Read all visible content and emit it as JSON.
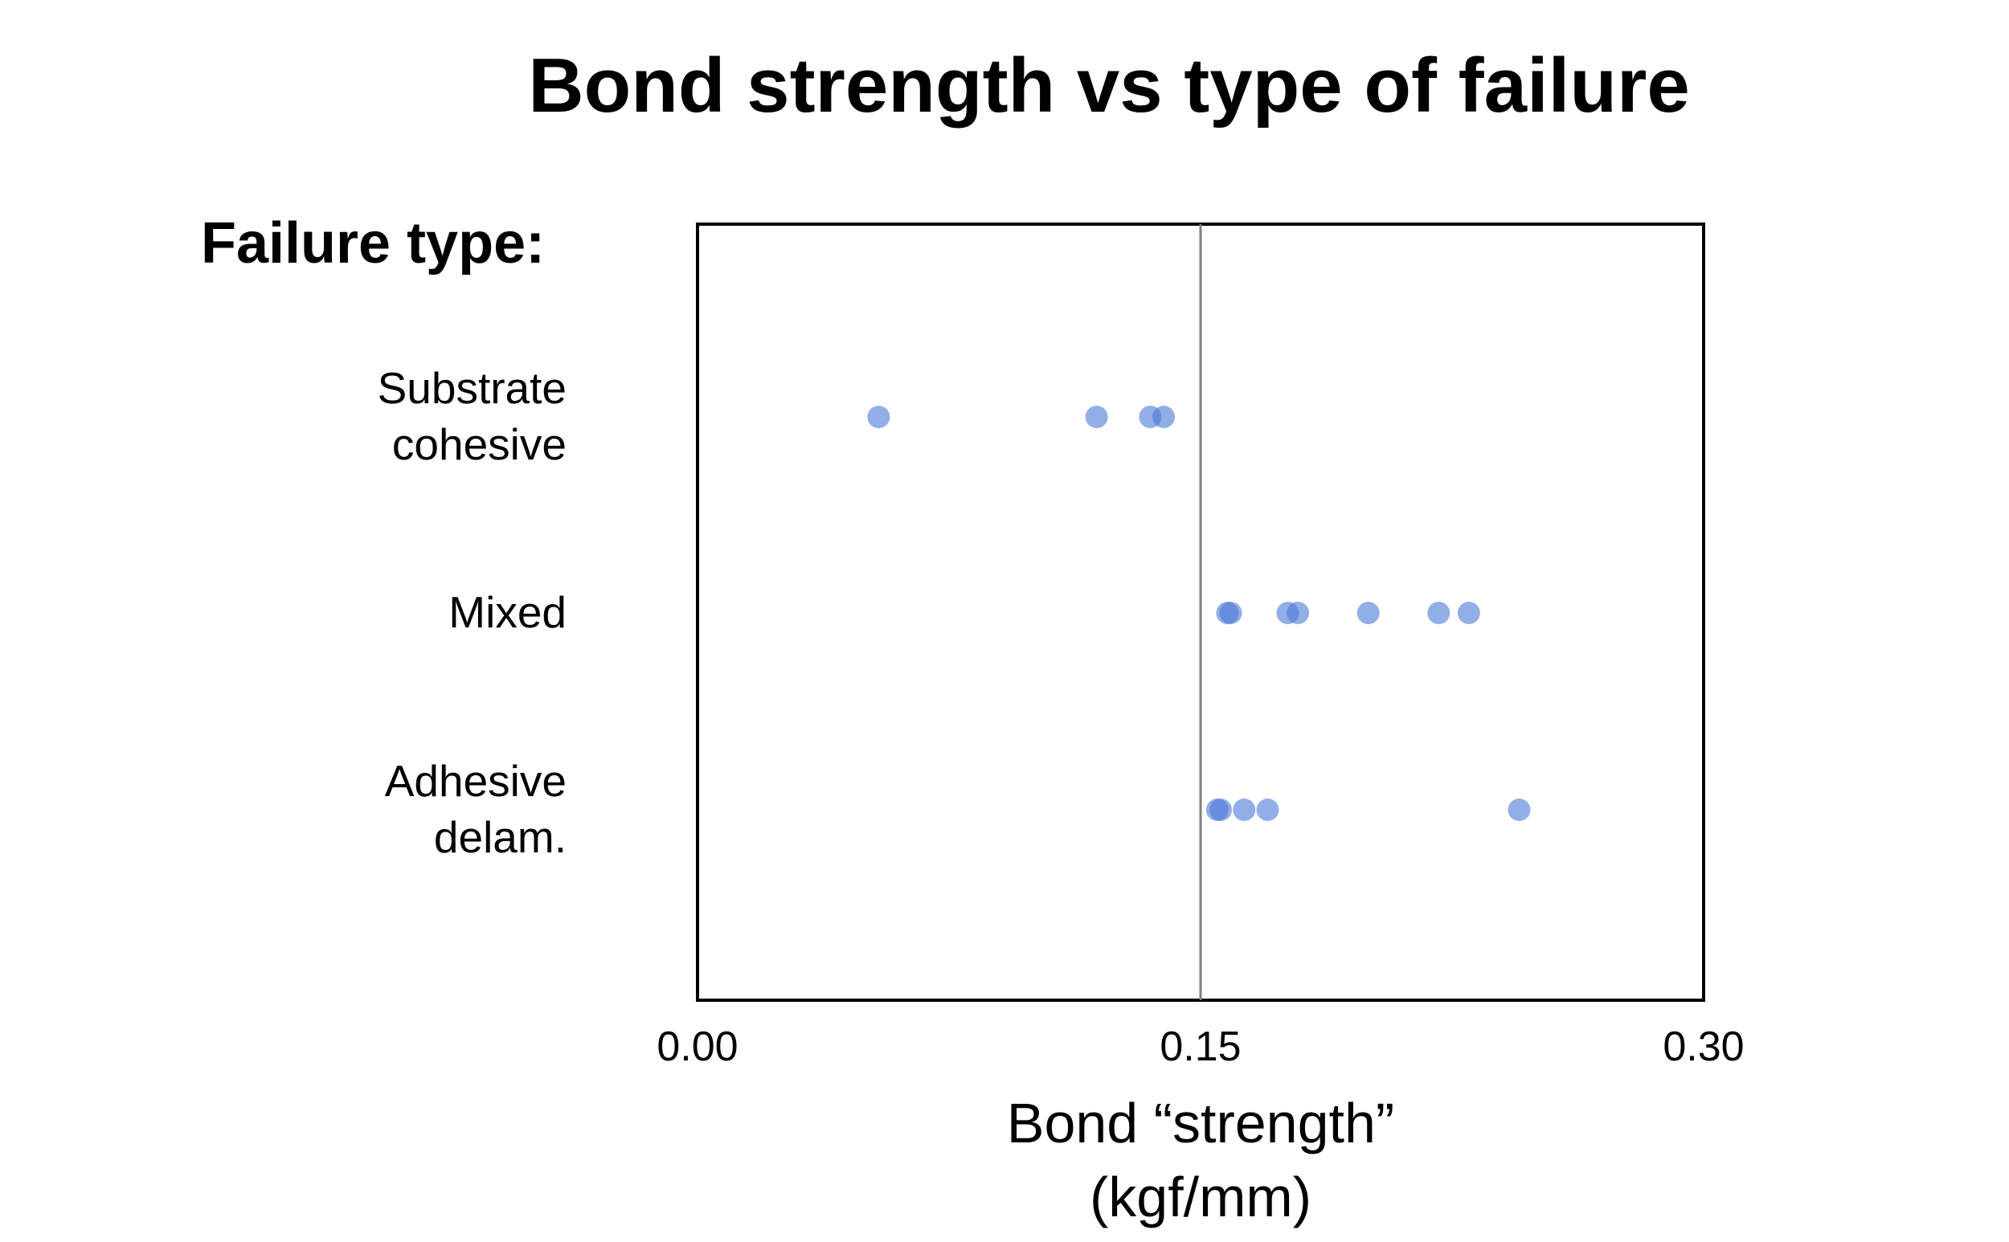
{
  "chart_data": {
    "type": "scatter",
    "title": "Bond strength vs type of failure",
    "ylabel": "Failure type:",
    "xlabel": [
      "Bond “strength”",
      "(kgf/mm)"
    ],
    "xlim": [
      0,
      0.3
    ],
    "xticks": [
      "0.00",
      "0.15",
      "0.30"
    ],
    "reference_line_x": 0.15,
    "grid": false,
    "marker_color": "#4a78d6",
    "categories": [
      [
        "Substrate",
        "cohesive"
      ],
      [
        "Mixed"
      ],
      [
        "Adhesive",
        "delam."
      ]
    ],
    "series": [
      {
        "category": 0,
        "x": [
          0.054,
          0.119,
          0.135,
          0.139
        ]
      },
      {
        "category": 1,
        "x": [
          0.158,
          0.159,
          0.176,
          0.179,
          0.2,
          0.221,
          0.23
        ]
      },
      {
        "category": 2,
        "x": [
          0.155,
          0.156,
          0.163,
          0.17,
          0.245
        ]
      }
    ]
  }
}
